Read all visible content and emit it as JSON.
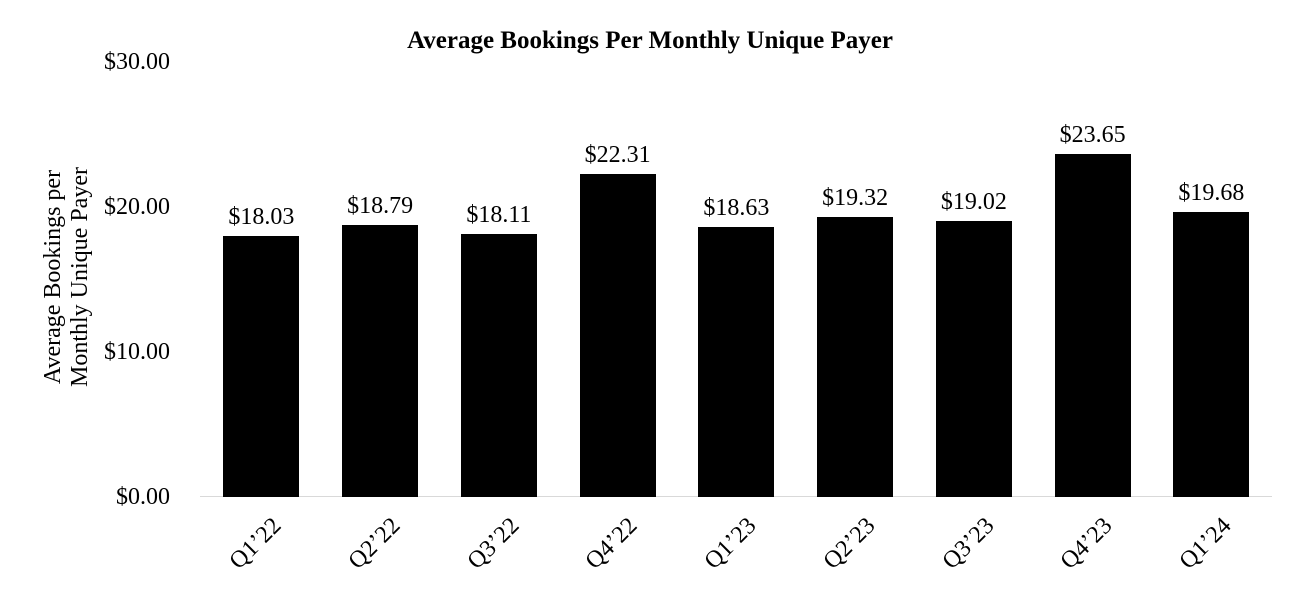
{
  "chart_data": {
    "type": "bar",
    "title": "Average Bookings Per Monthly Unique Payer",
    "xlabel": "",
    "ylabel": "Average Bookings per Monthly Unique Payer",
    "ylabel_lines": [
      "Average Bookings per",
      "Monthly Unique Payer"
    ],
    "categories": [
      "Q1’22",
      "Q2’22",
      "Q3’22",
      "Q4’22",
      "Q1’23",
      "Q2’23",
      "Q3’23",
      "Q4’23",
      "Q1’24"
    ],
    "values": [
      18.03,
      18.79,
      18.11,
      22.31,
      18.63,
      19.32,
      19.02,
      23.65,
      19.68
    ],
    "value_labels": [
      "$18.03",
      "$18.79",
      "$18.11",
      "$22.31",
      "$18.63",
      "$19.32",
      "$19.02",
      "$23.65",
      "$19.68"
    ],
    "yticks": [
      {
        "value": 0,
        "label": "$0.00"
      },
      {
        "value": 10,
        "label": "$10.00"
      },
      {
        "value": 20,
        "label": "$20.00"
      },
      {
        "value": 30,
        "label": "$30.00"
      }
    ],
    "ylim": [
      0,
      30
    ],
    "grid": false,
    "legend": false,
    "bar_color": "#000000",
    "axis_line_color": "#d9d9d9",
    "text_color": "#000000",
    "background_color": "#ffffff"
  }
}
